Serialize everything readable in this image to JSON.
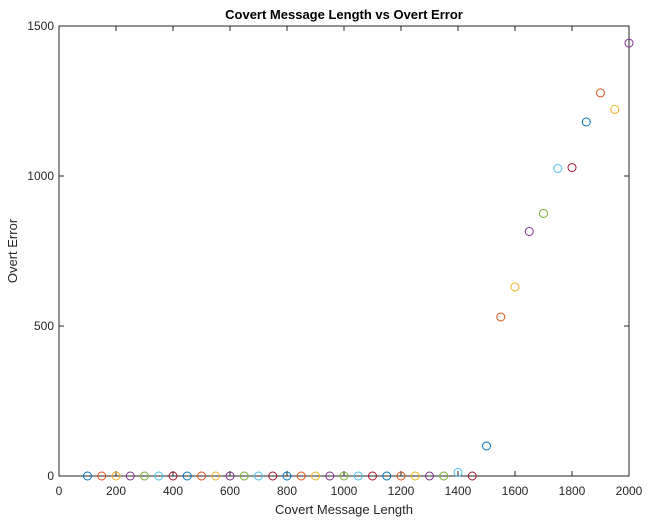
{
  "chart_data": {
    "type": "scatter",
    "title": "Covert Message Length vs Overt Error",
    "xlabel": "Covert Message Length",
    "ylabel": "Overt Error",
    "xlim": [
      0,
      2000
    ],
    "ylim": [
      0,
      1500
    ],
    "xticks": [
      0,
      200,
      400,
      600,
      800,
      1000,
      1200,
      1400,
      1600,
      1800,
      2000
    ],
    "yticks": [
      0,
      500,
      1000,
      1500
    ],
    "grid": false,
    "legend": "none",
    "marker": "circle-open",
    "color_cycle": [
      "#0072BD",
      "#D95319",
      "#EDB120",
      "#7E2F8E",
      "#77AC30",
      "#4DBEEE",
      "#A2142F"
    ],
    "x": [
      100,
      150,
      200,
      250,
      300,
      350,
      400,
      450,
      500,
      550,
      600,
      650,
      700,
      750,
      800,
      850,
      900,
      950,
      1000,
      1050,
      1100,
      1150,
      1200,
      1250,
      1300,
      1350,
      1400,
      1450,
      1500,
      1550,
      1600,
      1650,
      1700,
      1750,
      1800,
      1850,
      1900,
      1950,
      2000
    ],
    "y": [
      0,
      0,
      0,
      0,
      0,
      0,
      0,
      0,
      0,
      0,
      0,
      0,
      0,
      0,
      0,
      0,
      0,
      0,
      0,
      0,
      0,
      0,
      0,
      0,
      0,
      0,
      12,
      0,
      100,
      530,
      630,
      815,
      875,
      1025,
      1028,
      1180,
      1277,
      1222,
      1443
    ],
    "point_colors": [
      "#0072BD",
      "#D95319",
      "#EDB120",
      "#7E2F8E",
      "#77AC30",
      "#4DBEEE",
      "#A2142F",
      "#0072BD",
      "#D95319",
      "#EDB120",
      "#7E2F8E",
      "#77AC30",
      "#4DBEEE",
      "#A2142F",
      "#0072BD",
      "#D95319",
      "#EDB120",
      "#7E2F8E",
      "#77AC30",
      "#4DBEEE",
      "#A2142F",
      "#0072BD",
      "#D95319",
      "#EDB120",
      "#7E2F8E",
      "#77AC30",
      "#4DBEEE",
      "#A2142F",
      "#0072BD",
      "#D95319",
      "#EDB120",
      "#7E2F8E",
      "#77AC30",
      "#4DBEEE",
      "#A2142F",
      "#0072BD",
      "#D95319",
      "#EDB120",
      "#7E2F8E"
    ]
  }
}
